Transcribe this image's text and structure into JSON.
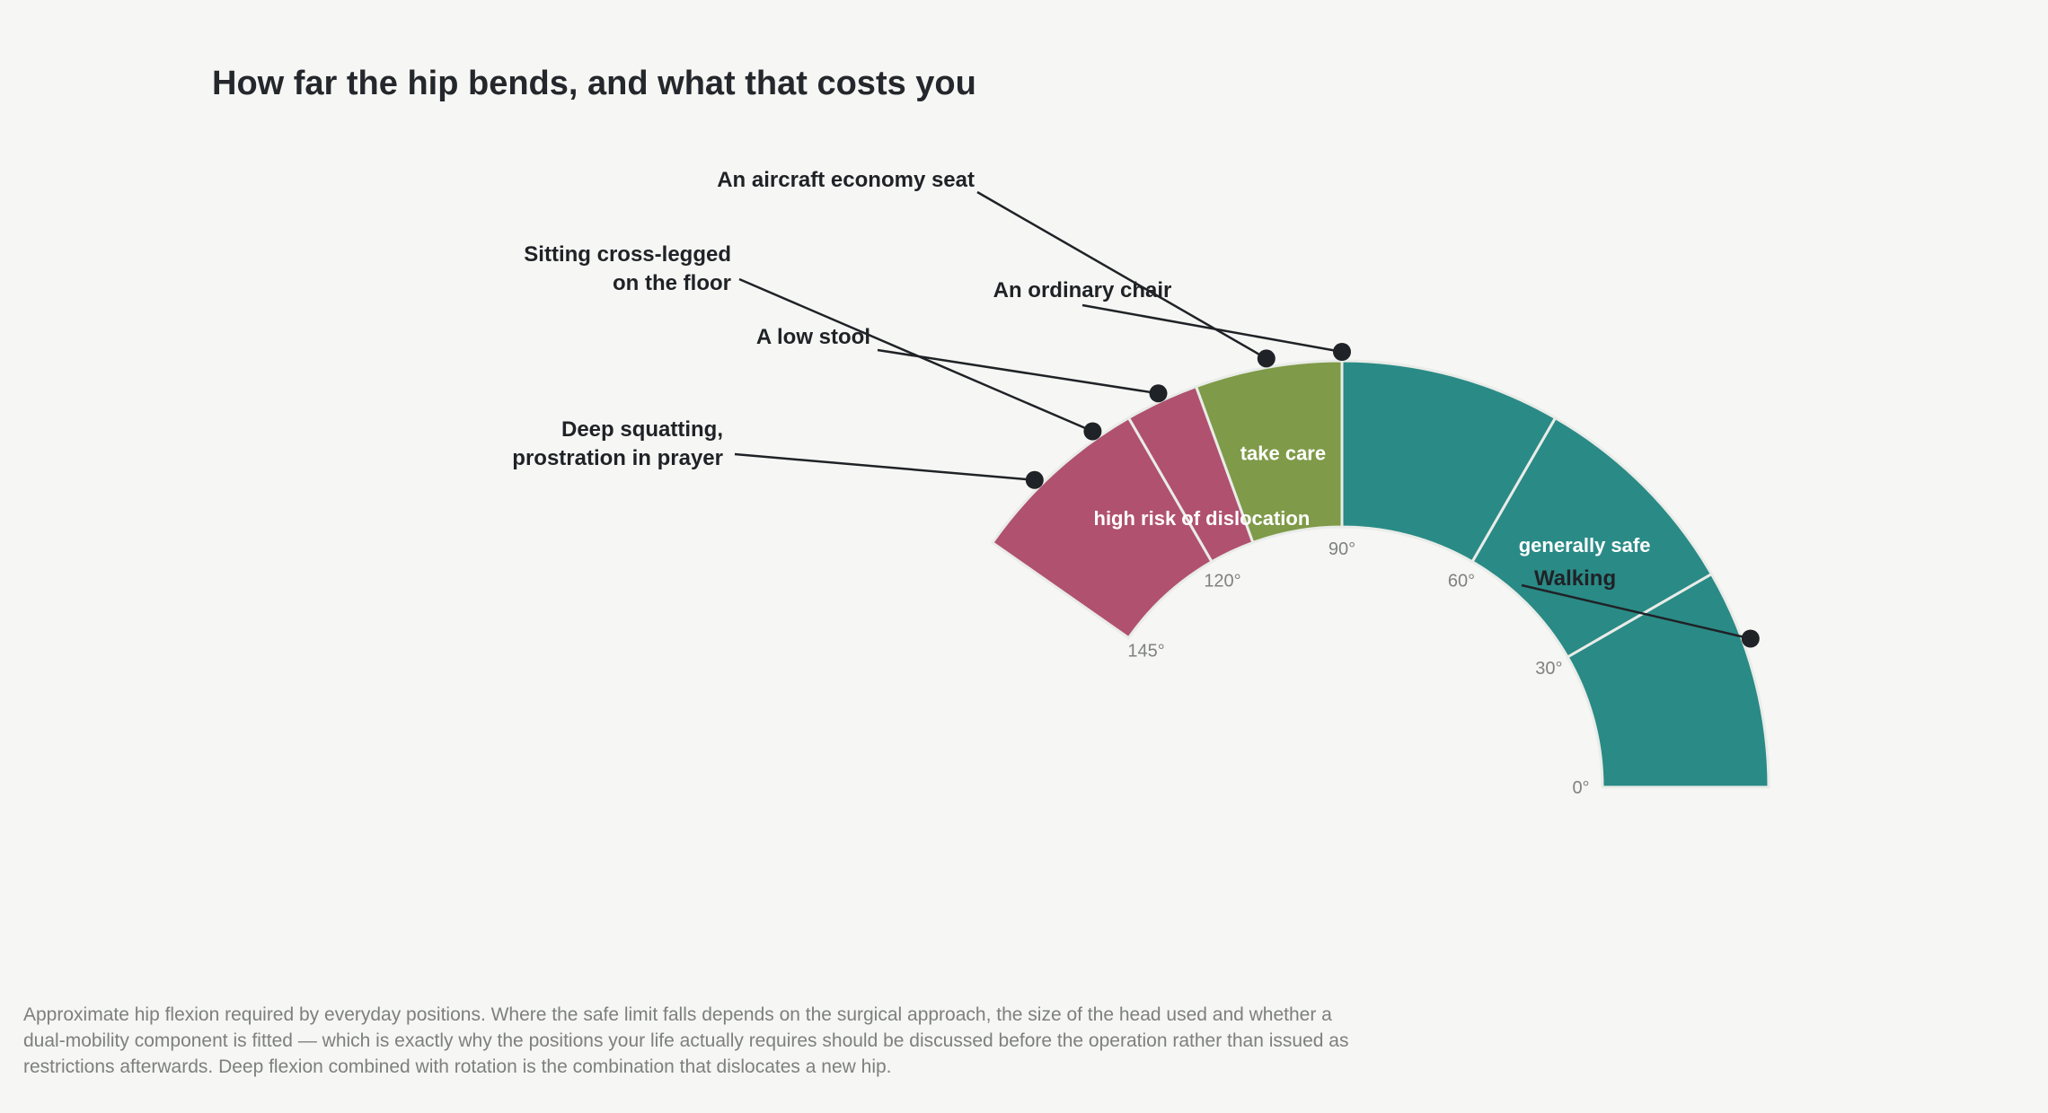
{
  "title": "How far the hip bends, and what that costs you",
  "footnote": [
    "Approximate hip flexion required by everyday positions. Where the safe limit falls depends on the surgical approach, the size of the head used and whether a",
    "dual-mobility component is fitted — which is exactly why the positions your life actually requires should be discussed before the operation rather than issued as",
    "restrictions afterwards. Deep flexion combined with rotation is the combination that dislocates a new hip."
  ],
  "chart_data": {
    "type": "gauge",
    "unit": "°",
    "range": [
      0,
      145
    ],
    "ticks": [
      0,
      30,
      60,
      90,
      120,
      145
    ],
    "tick_labels": [
      "0°",
      "30°",
      "60°",
      "90°",
      "120°",
      "145°"
    ],
    "segments": [
      [
        0,
        30
      ],
      [
        30,
        60
      ],
      [
        60,
        90
      ],
      [
        90,
        110
      ],
      [
        110,
        120
      ],
      [
        120,
        145
      ]
    ],
    "zones": [
      {
        "label": "generally safe",
        "from": 0,
        "to": 90,
        "color": "#2a8a86"
      },
      {
        "label": "take care",
        "from": 90,
        "to": 110,
        "color": "#7f9a48"
      },
      {
        "label": "high risk of dislocation",
        "from": 110,
        "to": 145,
        "color": "#b05170"
      }
    ],
    "annotations": [
      {
        "label": [
          "Walking"
        ],
        "value": 20
      },
      {
        "label": [
          "An ordinary chair"
        ],
        "value": 90
      },
      {
        "label": [
          "An aircraft economy seat"
        ],
        "value": 100
      },
      {
        "label": [
          "A low stool"
        ],
        "value": 115
      },
      {
        "label": [
          "Sitting cross-legged",
          "on the floor"
        ],
        "value": 125
      },
      {
        "label": [
          "Deep squatting,",
          "prostration in prayer"
        ],
        "value": 135
      }
    ]
  }
}
